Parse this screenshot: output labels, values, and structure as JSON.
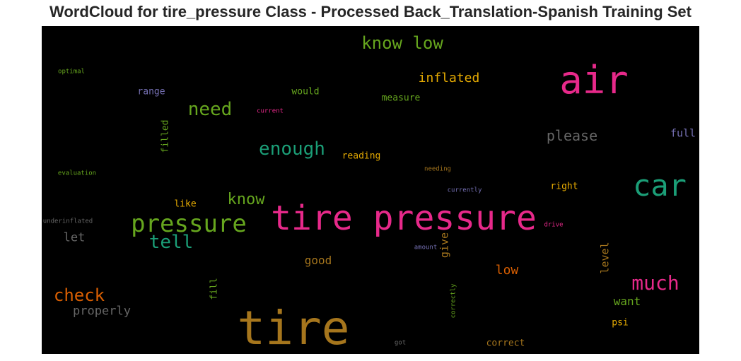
{
  "title": "WordCloud for tire_pressure Class - Processed Back_Translation-Spanish Training Set",
  "chart_data": {
    "type": "wordcloud",
    "title": "WordCloud for tire_pressure Class - Processed Back_Translation-Spanish Training Set",
    "background": "#000000",
    "colormap": "Dark2",
    "words": [
      {
        "text": "tire pressure",
        "weight": 1.0,
        "color": "#e7298a",
        "vertical": false
      },
      {
        "text": "tire",
        "weight": 0.9,
        "color": "#a6761d",
        "vertical": false
      },
      {
        "text": "air",
        "weight": 0.82,
        "color": "#e7298a",
        "vertical": false
      },
      {
        "text": "car",
        "weight": 0.62,
        "color": "#1b9e77",
        "vertical": false
      },
      {
        "text": "pressure",
        "weight": 0.6,
        "color": "#66a61e",
        "vertical": false
      },
      {
        "text": "much",
        "weight": 0.45,
        "color": "#e7298a",
        "vertical": false
      },
      {
        "text": "tell",
        "weight": 0.42,
        "color": "#1b9e77",
        "vertical": false
      },
      {
        "text": "enough",
        "weight": 0.42,
        "color": "#1b9e77",
        "vertical": false
      },
      {
        "text": "need",
        "weight": 0.42,
        "color": "#66a61e",
        "vertical": false
      },
      {
        "text": "check",
        "weight": 0.4,
        "color": "#d95f02",
        "vertical": false
      },
      {
        "text": "know low",
        "weight": 0.4,
        "color": "#66a61e",
        "vertical": false
      },
      {
        "text": "know",
        "weight": 0.36,
        "color": "#66a61e",
        "vertical": false
      },
      {
        "text": "please",
        "weight": 0.34,
        "color": "#666666",
        "vertical": false
      },
      {
        "text": "inflated",
        "weight": 0.32,
        "color": "#e6ab02",
        "vertical": false
      },
      {
        "text": "low",
        "weight": 0.3,
        "color": "#d95f02",
        "vertical": false
      },
      {
        "text": "properly",
        "weight": 0.29,
        "color": "#666666",
        "vertical": false
      },
      {
        "text": "let",
        "weight": 0.29,
        "color": "#666666",
        "vertical": false
      },
      {
        "text": "want",
        "weight": 0.27,
        "color": "#66a61e",
        "vertical": false
      },
      {
        "text": "good",
        "weight": 0.26,
        "color": "#a6761d",
        "vertical": false
      },
      {
        "text": "full",
        "weight": 0.26,
        "color": "#7570b3",
        "vertical": false
      },
      {
        "text": "level",
        "weight": 0.24,
        "color": "#a6761d",
        "vertical": true
      },
      {
        "text": "give",
        "weight": 0.23,
        "color": "#a6761d",
        "vertical": true
      },
      {
        "text": "correct",
        "weight": 0.22,
        "color": "#a6761d",
        "vertical": false
      },
      {
        "text": "measure",
        "weight": 0.22,
        "color": "#66a61e",
        "vertical": false
      },
      {
        "text": "reading",
        "weight": 0.22,
        "color": "#e6ab02",
        "vertical": false
      },
      {
        "text": "would",
        "weight": 0.22,
        "color": "#66a61e",
        "vertical": false
      },
      {
        "text": "range",
        "weight": 0.22,
        "color": "#7570b3",
        "vertical": false
      },
      {
        "text": "like",
        "weight": 0.22,
        "color": "#e6ab02",
        "vertical": false
      },
      {
        "text": "filled",
        "weight": 0.22,
        "color": "#66a61e",
        "vertical": true
      },
      {
        "text": "right",
        "weight": 0.21,
        "color": "#e6ab02",
        "vertical": false
      },
      {
        "text": "psi",
        "weight": 0.2,
        "color": "#e6ab02",
        "vertical": false
      },
      {
        "text": "fill",
        "weight": 0.19,
        "color": "#66a61e",
        "vertical": true
      },
      {
        "text": "currently",
        "weight": 0.1,
        "color": "#7570b3",
        "vertical": false
      },
      {
        "text": "correctly",
        "weight": 0.1,
        "color": "#66a61e",
        "vertical": true
      },
      {
        "text": "needing",
        "weight": 0.1,
        "color": "#a6761d",
        "vertical": false
      },
      {
        "text": "current",
        "weight": 0.1,
        "color": "#e7298a",
        "vertical": false
      },
      {
        "text": "amount",
        "weight": 0.1,
        "color": "#7570b3",
        "vertical": false
      },
      {
        "text": "drive",
        "weight": 0.1,
        "color": "#e7298a",
        "vertical": false
      },
      {
        "text": "got",
        "weight": 0.1,
        "color": "#666666",
        "vertical": false
      },
      {
        "text": "optimal",
        "weight": 0.1,
        "color": "#66a61e",
        "vertical": false
      },
      {
        "text": "evaluation",
        "weight": 0.1,
        "color": "#66a61e",
        "vertical": false
      },
      {
        "text": "underinflated",
        "weight": 0.1,
        "color": "#666666",
        "vertical": false
      }
    ]
  }
}
